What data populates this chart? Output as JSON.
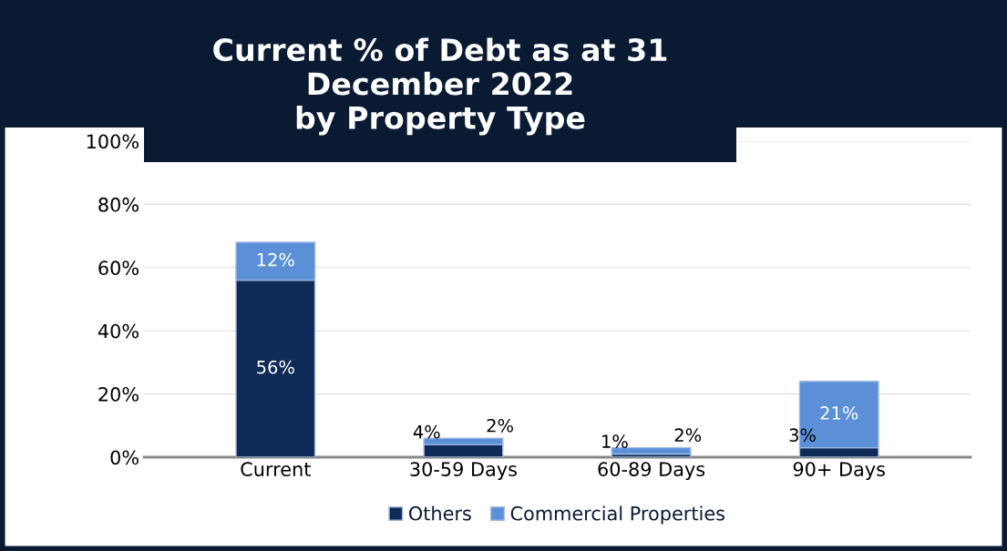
{
  "chart_data": {
    "type": "bar",
    "title": "Current % of Debt as at 31\nDecember 2022\nby Property Type",
    "categories": [
      "Current",
      "30-59 Days",
      "60-89 Days",
      "90+ Days"
    ],
    "stacked": true,
    "series": [
      {
        "name": "Others",
        "color": "#0e2a56",
        "values": [
          56,
          4,
          1,
          3
        ],
        "value_labels": [
          "56%",
          "4%",
          "1%",
          "3%"
        ]
      },
      {
        "name": "Commercial Properties",
        "color": "#5b8fd8",
        "values": [
          12,
          2,
          2,
          21
        ],
        "value_labels": [
          "12%",
          "2%",
          "2%",
          "21%"
        ]
      }
    ],
    "ylim": [
      0,
      100
    ],
    "yticks": [
      {
        "value": 0,
        "label": "0%"
      },
      {
        "value": 20,
        "label": "20%"
      },
      {
        "value": 40,
        "label": "40%"
      },
      {
        "value": 60,
        "label": "60%"
      },
      {
        "value": 80,
        "label": "80%"
      },
      {
        "value": 100,
        "label": "100%"
      }
    ],
    "grid": "y",
    "legend": "bottom"
  }
}
